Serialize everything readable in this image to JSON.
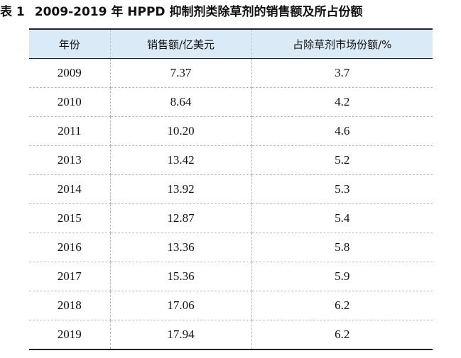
{
  "caption": {
    "label": "表 1",
    "title": "2009-2019 年 HPPD 抑制剂类除草剂的销售额及所占份额"
  },
  "table": {
    "headers": [
      "年份",
      "销售额/亿美元",
      "占除草剂市场份额/%"
    ],
    "rows": [
      [
        "2009",
        "7.37",
        "3.7"
      ],
      [
        "2010",
        "8.64",
        "4.2"
      ],
      [
        "2011",
        "10.20",
        "4.6"
      ],
      [
        "2013",
        "13.42",
        "5.2"
      ],
      [
        "2014",
        "13.92",
        "5.3"
      ],
      [
        "2015",
        "12.87",
        "5.4"
      ],
      [
        "2016",
        "13.36",
        "5.8"
      ],
      [
        "2017",
        "15.36",
        "5.9"
      ],
      [
        "2018",
        "17.06",
        "6.2"
      ],
      [
        "2019",
        "17.94",
        "6.2"
      ]
    ]
  },
  "colors": {
    "header_background": "#dbeaf7",
    "rule_lines": "#222222",
    "dashed_grid": "#b8b8b8"
  }
}
